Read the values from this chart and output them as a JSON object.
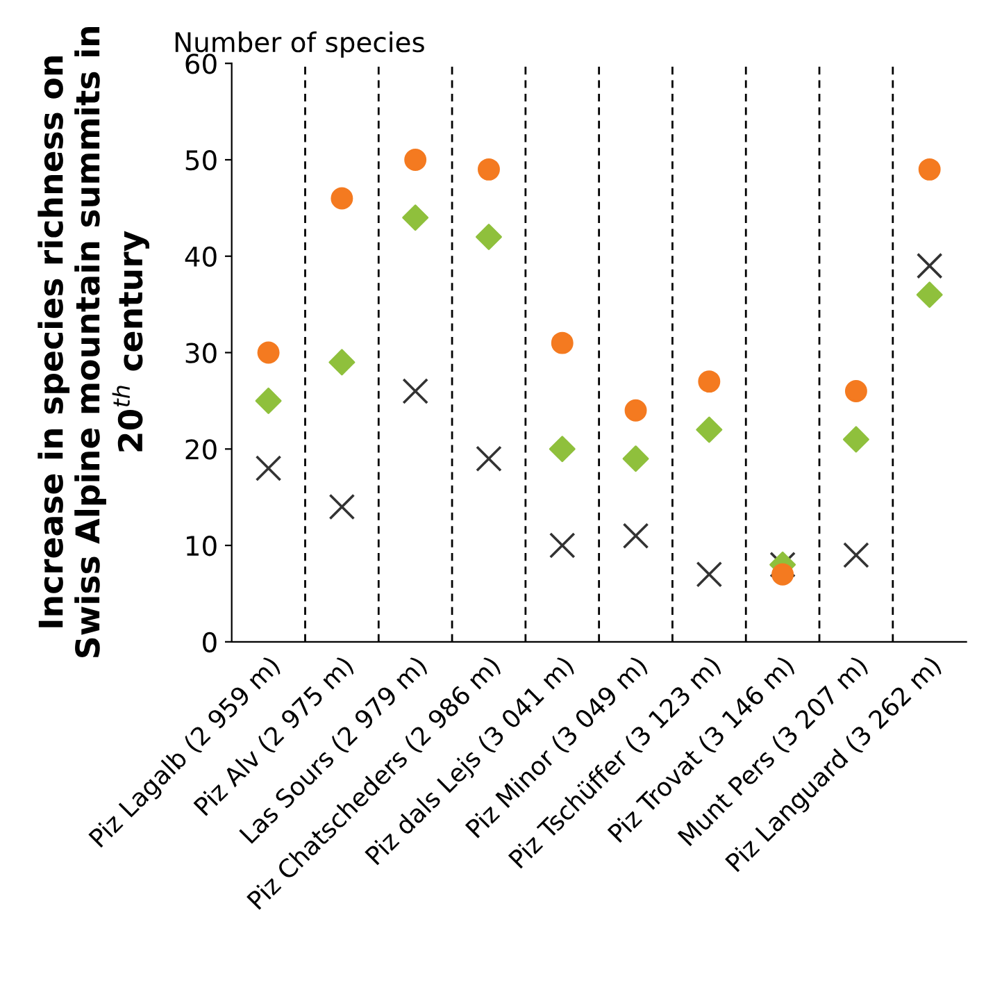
{
  "chart_data": {
    "type": "scatter",
    "title": "Increase in species richness on Swiss Alpine mountain summits in 20$^{th}$ century",
    "ylabel": "Number of species",
    "categories": [
      "Piz Lagalb (2 959 m)",
      "Piz Alv (2 975 m)",
      "Las Sours (2 979 m)",
      "Piz Chatscheders (2 986 m)",
      "Piz dals Lejs (3 041 m)",
      "Piz Minor (3 049 m)",
      "Piz Tschüffer (3 123 m)",
      "Piz Trovat (3 146 m)",
      "Munt Pers (3 207 m)",
      "Piz Languard (3 262 m)"
    ],
    "series": [
      {
        "color": "#f47a20",
        "marker": "circle",
        "values": [
          30,
          46,
          50,
          49,
          31,
          24,
          27,
          7,
          26,
          49
        ]
      },
      {
        "color": "#8fc03c",
        "marker": "diamond",
        "values": [
          25,
          29,
          44,
          42,
          20,
          19,
          22,
          8,
          21,
          36
        ]
      },
      {
        "color": "#333333",
        "marker": "cross",
        "values": [
          18,
          14,
          26,
          19,
          10,
          11,
          7,
          8,
          9,
          39
        ]
      }
    ],
    "ylim": [
      0,
      60
    ],
    "yticks": [
      0,
      10,
      20,
      30,
      40,
      50,
      60
    ],
    "grid": "x",
    "legend": false
  }
}
